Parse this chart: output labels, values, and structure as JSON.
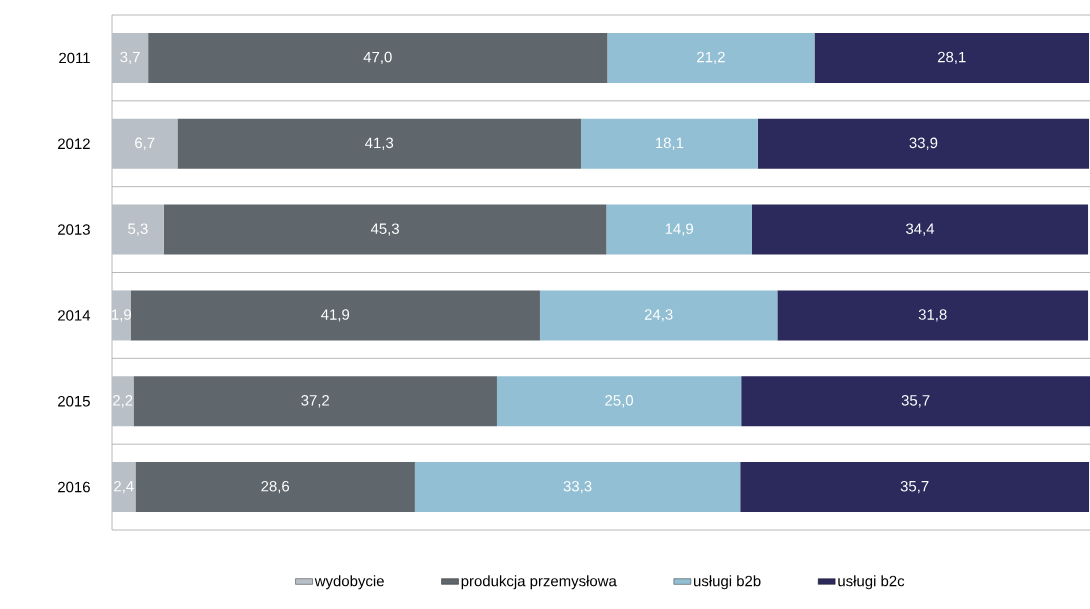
{
  "chart_data": {
    "type": "bar",
    "orientation": "horizontal",
    "stacked": true,
    "categories": [
      "2011",
      "2012",
      "2013",
      "2014",
      "2015",
      "2016"
    ],
    "grid": "y",
    "legend": "bottom",
    "tick_labels": "y",
    "series": [
      {
        "name": "wydobycie",
        "color": "#b8bfc6",
        "values": [
          3.7,
          6.7,
          5.3,
          1.9,
          2.2,
          2.4
        ],
        "value_labels": [
          "3,7",
          "6,7",
          "5,3",
          "1,9",
          "2,2",
          "2,4"
        ]
      },
      {
        "name": "produkcja przemysłowa",
        "color": "#5f676c",
        "values": [
          47.0,
          41.3,
          45.3,
          41.9,
          37.2,
          28.6
        ],
        "value_labels": [
          "47,0",
          "41,3",
          "45,3",
          "41,9",
          "37,2",
          "28,6"
        ]
      },
      {
        "name": "usługi b2b",
        "color": "#92bfd3",
        "values": [
          21.2,
          18.1,
          14.9,
          24.3,
          25.0,
          33.3
        ],
        "value_labels": [
          "21,2",
          "18,1",
          "14,9",
          "24,3",
          "25,0",
          "33,3"
        ]
      },
      {
        "name": "usługi b2c",
        "color": "#2c2a5c",
        "values": [
          28.1,
          33.9,
          34.4,
          31.8,
          35.7,
          35.7
        ],
        "value_labels": [
          "28,1",
          "33,9",
          "34,4",
          "31,8",
          "35,7",
          "35,7"
        ]
      }
    ]
  }
}
